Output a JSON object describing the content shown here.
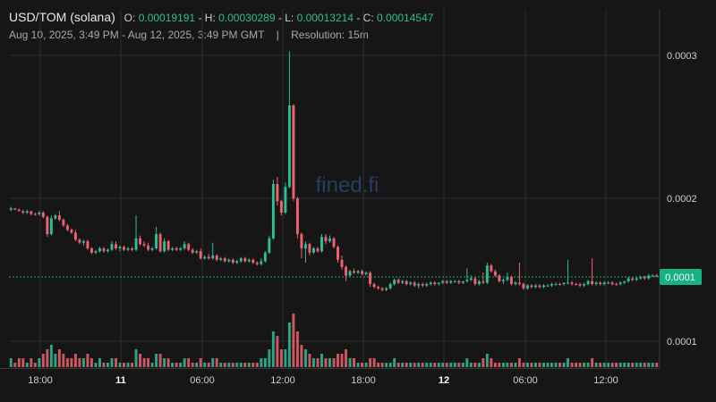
{
  "header": {
    "pair": "USD/TOM (solana)",
    "ohlc": {
      "o_label": "O:",
      "o": "0.00019191",
      "h_label": "H:",
      "h": "0.00030289",
      "l_label": "L:",
      "l": "0.00013214",
      "c_label": "C:",
      "c": "0.00014547"
    },
    "range": "Aug 10, 2025, 3:49 PM - Aug 12, 2025, 3:49 PM GMT",
    "separator": "|",
    "resolution": "Resolution: 15m"
  },
  "watermark": "fined.fi",
  "colors": {
    "background": "#161616",
    "up": "#2fbd98",
    "down": "#f0616d",
    "grid": "#2f2f2f",
    "price_tag": "#15b383"
  },
  "chart_data": {
    "type": "candlestick",
    "x_tick_labels": [
      "18:00",
      "11",
      "06:00",
      "12:00",
      "18:00",
      "12",
      "06:00",
      "12:00"
    ],
    "y_tick_labels": [
      "0.0003",
      "0.0002",
      "0.0001"
    ],
    "ylim": [
      0.00012,
      0.000305
    ],
    "current_price_label": "0.0001",
    "current_price": 0.000145,
    "grid": true,
    "candles": [
      [
        0.000192,
        0.000194,
        0.000191,
        0.000193,
        "g",
        2
      ],
      [
        0.000193,
        0.000193,
        0.000192,
        0.000192,
        "r",
        1
      ],
      [
        0.000192,
        0.000193,
        0.000191,
        0.000191,
        "r",
        2
      ],
      [
        0.000191,
        0.000192,
        0.000189,
        0.00019,
        "r",
        2
      ],
      [
        0.00019,
        0.000192,
        0.000189,
        0.000191,
        "g",
        1
      ],
      [
        0.000191,
        0.000191,
        0.000188,
        0.000189,
        "r",
        2
      ],
      [
        0.000189,
        0.00019,
        0.000188,
        0.000189,
        "r",
        1
      ],
      [
        0.000189,
        0.000191,
        0.000188,
        0.00019,
        "g",
        2
      ],
      [
        0.00019,
        0.000191,
        0.000186,
        0.000187,
        "r",
        3
      ],
      [
        0.000187,
        0.000188,
        0.000173,
        0.000175,
        "r",
        4
      ],
      [
        0.000175,
        0.000188,
        0.000174,
        0.000186,
        "g",
        5
      ],
      [
        0.000186,
        0.000189,
        0.000185,
        0.000188,
        "g",
        3
      ],
      [
        0.000188,
        0.000191,
        0.000184,
        0.000185,
        "r",
        4
      ],
      [
        0.000185,
        0.000186,
        0.00018,
        0.000181,
        "r",
        3
      ],
      [
        0.000181,
        0.000182,
        0.000177,
        0.000178,
        "r",
        2
      ],
      [
        0.000178,
        0.000179,
        0.000175,
        0.000176,
        "r",
        2
      ],
      [
        0.000176,
        0.000178,
        0.00017,
        0.000171,
        "r",
        3
      ],
      [
        0.000171,
        0.000172,
        0.000168,
        0.000169,
        "r",
        2
      ],
      [
        0.000169,
        0.000171,
        0.000167,
        0.00017,
        "g",
        2
      ],
      [
        0.00017,
        0.000171,
        0.000164,
        0.000165,
        "r",
        3
      ],
      [
        0.000165,
        0.000166,
        0.000161,
        0.000162,
        "r",
        2
      ],
      [
        0.000162,
        0.000164,
        0.000161,
        0.000163,
        "g",
        1
      ],
      [
        0.000163,
        0.000166,
        0.000162,
        0.000165,
        "g",
        2
      ],
      [
        0.000165,
        0.000166,
        0.000162,
        0.000163,
        "r",
        1
      ],
      [
        0.000163,
        0.000165,
        0.000162,
        0.000164,
        "g",
        1
      ],
      [
        0.000164,
        0.00017,
        0.000163,
        0.000168,
        "g",
        2
      ],
      [
        0.000168,
        0.00017,
        0.000164,
        0.000165,
        "r",
        2
      ],
      [
        0.000165,
        0.000167,
        0.000163,
        0.000166,
        "g",
        1
      ],
      [
        0.000166,
        0.000167,
        0.000163,
        0.000164,
        "r",
        1
      ],
      [
        0.000164,
        0.000166,
        0.000163,
        0.000165,
        "g",
        1
      ],
      [
        0.000165,
        0.000166,
        0.000163,
        0.000164,
        "r",
        1
      ],
      [
        0.000164,
        0.000188,
        0.000163,
        0.000172,
        "g",
        4
      ],
      [
        0.000172,
        0.000174,
        0.000167,
        0.000168,
        "r",
        3
      ],
      [
        0.000168,
        0.00017,
        0.000166,
        0.000167,
        "r",
        2
      ],
      [
        0.000167,
        0.000169,
        0.000163,
        0.000164,
        "r",
        2
      ],
      [
        0.000164,
        0.000166,
        0.000163,
        0.000165,
        "g",
        1
      ],
      [
        0.000165,
        0.00018,
        0.000164,
        0.000175,
        "g",
        3
      ],
      [
        0.000175,
        0.000176,
        0.000162,
        0.000163,
        "r",
        3
      ],
      [
        0.000163,
        0.000172,
        0.000162,
        0.00017,
        "g",
        2
      ],
      [
        0.00017,
        0.000171,
        0.000163,
        0.000164,
        "r",
        2
      ],
      [
        0.000164,
        0.000166,
        0.000163,
        0.000165,
        "g",
        1
      ],
      [
        0.000165,
        0.000166,
        0.000163,
        0.000164,
        "r",
        1
      ],
      [
        0.000164,
        0.000166,
        0.000163,
        0.000165,
        "g",
        1
      ],
      [
        0.000165,
        0.00017,
        0.000164,
        0.000168,
        "g",
        2
      ],
      [
        0.000168,
        0.000169,
        0.000163,
        0.000164,
        "r",
        2
      ],
      [
        0.000164,
        0.000165,
        0.000161,
        0.000162,
        "r",
        1
      ],
      [
        0.000162,
        0.000164,
        0.000161,
        0.000163,
        "g",
        1
      ],
      [
        0.000163,
        0.000165,
        0.000157,
        0.000158,
        "r",
        2
      ],
      [
        0.000158,
        0.00016,
        0.000157,
        0.000159,
        "g",
        1
      ],
      [
        0.000159,
        0.000161,
        0.000157,
        0.000158,
        "r",
        1
      ],
      [
        0.000158,
        0.000169,
        0.000157,
        0.00016,
        "g",
        2
      ],
      [
        0.00016,
        0.000161,
        0.000156,
        0.000157,
        "r",
        2
      ],
      [
        0.000157,
        0.000159,
        0.000156,
        0.000158,
        "g",
        1
      ],
      [
        0.000158,
        0.000159,
        0.000155,
        0.000156,
        "r",
        1
      ],
      [
        0.000156,
        0.000158,
        0.000155,
        0.000157,
        "g",
        1
      ],
      [
        0.000157,
        0.000158,
        0.000154,
        0.000155,
        "r",
        1
      ],
      [
        0.000155,
        0.000157,
        0.000154,
        0.000156,
        "g",
        1
      ],
      [
        0.000156,
        0.000159,
        0.000155,
        0.000158,
        "g",
        1
      ],
      [
        0.000158,
        0.000159,
        0.000155,
        0.000156,
        "r",
        1
      ],
      [
        0.000156,
        0.000158,
        0.000155,
        0.000157,
        "g",
        1
      ],
      [
        0.000157,
        0.000158,
        0.000154,
        0.000155,
        "r",
        1
      ],
      [
        0.000155,
        0.000156,
        0.000153,
        0.000154,
        "r",
        1
      ],
      [
        0.000154,
        0.000158,
        0.000153,
        0.000156,
        "g",
        2
      ],
      [
        0.000156,
        0.000163,
        0.000155,
        0.000162,
        "g",
        2
      ],
      [
        0.000162,
        0.000174,
        0.000161,
        0.000172,
        "g",
        4
      ],
      [
        0.000172,
        0.000213,
        0.000171,
        0.00021,
        "g",
        8
      ],
      [
        0.00021,
        0.000215,
        0.000195,
        0.000198,
        "r",
        7
      ],
      [
        0.000198,
        0.000199,
        0.000188,
        0.00019,
        "r",
        4
      ],
      [
        0.00019,
        0.000211,
        0.000189,
        0.000208,
        "g",
        4
      ],
      [
        0.000208,
        0.000303,
        0.000207,
        0.000265,
        "g",
        10
      ],
      [
        0.000265,
        0.000266,
        0.000198,
        0.0002,
        "r",
        12
      ],
      [
        0.0002,
        0.000201,
        0.000172,
        0.000175,
        "r",
        8
      ],
      [
        0.000175,
        0.000176,
        0.000158,
        0.000165,
        "r",
        5
      ],
      [
        0.000165,
        0.00017,
        0.000155,
        0.000168,
        "g",
        4
      ],
      [
        0.000168,
        0.000169,
        0.00016,
        0.000162,
        "r",
        3
      ],
      [
        0.000162,
        0.000166,
        0.000161,
        0.000165,
        "g",
        2
      ],
      [
        0.000165,
        0.000166,
        0.000162,
        0.000163,
        "r",
        2
      ],
      [
        0.000163,
        0.000175,
        0.000162,
        0.000173,
        "g",
        3
      ],
      [
        0.000173,
        0.000175,
        0.000168,
        0.00017,
        "r",
        2
      ],
      [
        0.00017,
        0.000174,
        0.000169,
        0.000172,
        "g",
        2
      ],
      [
        0.000172,
        0.000173,
        0.000165,
        0.000166,
        "r",
        2
      ],
      [
        0.000166,
        0.000167,
        0.000155,
        0.000157,
        "r",
        3
      ],
      [
        0.000157,
        0.00016,
        0.00015,
        0.000152,
        "r",
        3
      ],
      [
        0.000152,
        0.000153,
        0.000142,
        0.000146,
        "r",
        4
      ],
      [
        0.000146,
        0.00015,
        0.000145,
        0.000149,
        "g",
        2
      ],
      [
        0.000149,
        0.000151,
        0.000147,
        0.000148,
        "r",
        2
      ],
      [
        0.000148,
        0.00015,
        0.000147,
        0.000149,
        "g",
        1
      ],
      [
        0.000149,
        0.00015,
        0.000146,
        0.000147,
        "r",
        1
      ],
      [
        0.000147,
        0.000149,
        0.000146,
        0.000148,
        "g",
        1
      ],
      [
        0.000148,
        0.000149,
        0.000138,
        0.00014,
        "r",
        2
      ],
      [
        0.00014,
        0.000141,
        0.000137,
        0.000138,
        "r",
        2
      ],
      [
        0.000138,
        0.000139,
        0.000136,
        0.000137,
        "r",
        1
      ],
      [
        0.000137,
        0.000138,
        0.000135,
        0.000136,
        "r",
        1
      ],
      [
        0.000136,
        0.000138,
        0.000135,
        0.000137,
        "g",
        1
      ],
      [
        0.000137,
        0.000141,
        0.000136,
        0.00014,
        "g",
        1
      ],
      [
        0.00014,
        0.000144,
        0.000139,
        0.000143,
        "g",
        2
      ],
      [
        0.000143,
        0.000144,
        0.00014,
        0.000141,
        "r",
        1
      ],
      [
        0.000141,
        0.000143,
        0.00014,
        0.000142,
        "g",
        1
      ],
      [
        0.000142,
        0.000143,
        0.000139,
        0.00014,
        "r",
        1
      ],
      [
        0.00014,
        0.000142,
        0.000139,
        0.000141,
        "g",
        1
      ],
      [
        0.000141,
        0.000142,
        0.000138,
        0.000139,
        "r",
        1
      ],
      [
        0.000139,
        0.000141,
        0.000137,
        0.00014,
        "g",
        1
      ],
      [
        0.00014,
        0.000141,
        0.000138,
        0.000139,
        "r",
        1
      ],
      [
        0.000139,
        0.000141,
        0.000138,
        0.00014,
        "g",
        1
      ],
      [
        0.00014,
        0.000142,
        0.000139,
        0.000141,
        "g",
        1
      ],
      [
        0.000141,
        0.000142,
        0.000139,
        0.00014,
        "r",
        1
      ],
      [
        0.00014,
        0.000141,
        0.000139,
        0.000141,
        "g",
        1
      ],
      [
        0.000141,
        0.000143,
        0.00014,
        0.000142,
        "g",
        1
      ],
      [
        0.000142,
        0.000143,
        0.00014,
        0.000141,
        "r",
        1
      ],
      [
        0.000141,
        0.000143,
        0.00014,
        0.000142,
        "g",
        1
      ],
      [
        0.000142,
        0.000143,
        0.000141,
        0.000142,
        "g",
        1
      ],
      [
        0.000142,
        0.000143,
        0.00014,
        0.000141,
        "r",
        1
      ],
      [
        0.000141,
        0.000142,
        0.00014,
        0.000142,
        "g",
        1
      ],
      [
        0.000142,
        0.000151,
        0.000141,
        0.000143,
        "g",
        2
      ],
      [
        0.000143,
        0.000146,
        0.000142,
        0.000144,
        "g",
        1
      ],
      [
        0.000144,
        0.000145,
        0.000139,
        0.00014,
        "r",
        1
      ],
      [
        0.00014,
        0.000143,
        0.000139,
        0.000142,
        "g",
        1
      ],
      [
        0.000142,
        0.000148,
        0.00014,
        0.000141,
        "r",
        2
      ],
      [
        0.000141,
        0.000155,
        0.00014,
        0.000153,
        "g",
        3
      ],
      [
        0.000153,
        0.000154,
        0.000148,
        0.000149,
        "r",
        2
      ],
      [
        0.000149,
        0.00015,
        0.000145,
        0.000146,
        "r",
        1
      ],
      [
        0.000146,
        0.000147,
        0.000141,
        0.000142,
        "r",
        1
      ],
      [
        0.000142,
        0.000144,
        0.00014,
        0.000143,
        "g",
        1
      ],
      [
        0.000143,
        0.000148,
        0.000142,
        0.000145,
        "g",
        1
      ],
      [
        0.000145,
        0.000146,
        0.000139,
        0.00014,
        "r",
        1
      ],
      [
        0.00014,
        0.000142,
        0.000139,
        0.000141,
        "g",
        1
      ],
      [
        0.000141,
        0.000155,
        0.000139,
        0.00014,
        "r",
        2
      ],
      [
        0.00014,
        0.000141,
        0.000136,
        0.000137,
        "r",
        1
      ],
      [
        0.000137,
        0.00014,
        0.000136,
        0.000139,
        "g",
        1
      ],
      [
        0.000139,
        0.00014,
        0.000137,
        0.000138,
        "r",
        1
      ],
      [
        0.000138,
        0.00014,
        0.000137,
        0.000139,
        "g",
        1
      ],
      [
        0.000139,
        0.00014,
        0.000137,
        0.000138,
        "r",
        1
      ],
      [
        0.000138,
        0.00014,
        0.000137,
        0.000139,
        "g",
        1
      ],
      [
        0.000139,
        0.00014,
        0.000138,
        0.000139,
        "g",
        1
      ],
      [
        0.000139,
        0.000141,
        0.000138,
        0.00014,
        "g",
        1
      ],
      [
        0.00014,
        0.000141,
        0.000139,
        0.00014,
        "g",
        1
      ],
      [
        0.00014,
        0.000141,
        0.000139,
        0.00014,
        "r",
        1
      ],
      [
        0.00014,
        0.000141,
        0.000139,
        0.000141,
        "g",
        1
      ],
      [
        0.000141,
        0.000157,
        0.00014,
        0.000141,
        "g",
        2
      ],
      [
        0.000141,
        0.000142,
        0.000139,
        0.00014,
        "r",
        1
      ],
      [
        0.00014,
        0.000141,
        0.000139,
        0.00014,
        "r",
        1
      ],
      [
        0.00014,
        0.000141,
        0.000138,
        0.000139,
        "r",
        1
      ],
      [
        0.000139,
        0.000141,
        0.000138,
        0.00014,
        "g",
        1
      ],
      [
        0.00014,
        0.000143,
        0.000139,
        0.000142,
        "g",
        1
      ],
      [
        0.000142,
        0.000158,
        0.000139,
        0.00014,
        "r",
        2
      ],
      [
        0.00014,
        0.000142,
        0.000139,
        0.000141,
        "g",
        1
      ],
      [
        0.000141,
        0.000142,
        0.000139,
        0.00014,
        "r",
        1
      ],
      [
        0.00014,
        0.000142,
        0.000139,
        0.000141,
        "g",
        1
      ],
      [
        0.000141,
        0.000142,
        0.00014,
        0.000141,
        "g",
        1
      ],
      [
        0.000141,
        0.000142,
        0.000139,
        0.00014,
        "r",
        1
      ],
      [
        0.00014,
        0.000141,
        0.000139,
        0.00014,
        "r",
        1
      ],
      [
        0.00014,
        0.000142,
        0.000139,
        0.000141,
        "g",
        1
      ],
      [
        0.000141,
        0.000142,
        0.00014,
        0.000142,
        "g",
        1
      ],
      [
        0.000142,
        0.000145,
        0.000141,
        0.000144,
        "g",
        1
      ],
      [
        0.000144,
        0.000145,
        0.000142,
        0.000143,
        "r",
        1
      ],
      [
        0.000143,
        0.000145,
        0.000142,
        0.000144,
        "g",
        1
      ],
      [
        0.000144,
        0.000146,
        0.000143,
        0.000145,
        "g",
        1
      ],
      [
        0.000145,
        0.000146,
        0.000143,
        0.000144,
        "r",
        1
      ],
      [
        0.000144,
        0.000147,
        0.000143,
        0.000146,
        "g",
        1
      ],
      [
        0.000146,
        0.000147,
        0.000145,
        0.000146,
        "g",
        1
      ],
      [
        0.000146,
        0.000147,
        0.000145,
        0.000145,
        "r",
        1
      ]
    ],
    "candle_fields": [
      "open",
      "high",
      "low",
      "close",
      "direction",
      "volume"
    ]
  }
}
